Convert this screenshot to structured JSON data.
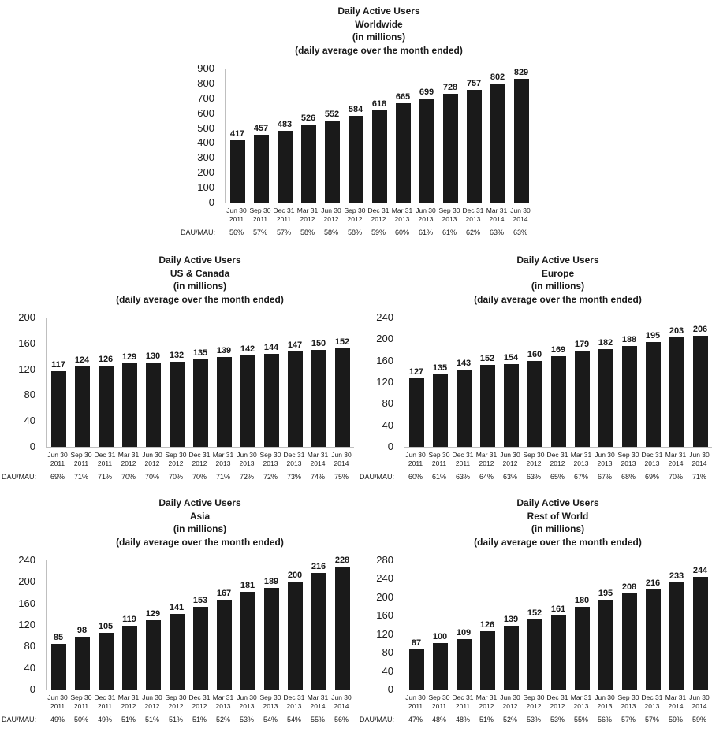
{
  "colors": {
    "bar": "#1a1a1a",
    "axis": "#bfbfbf",
    "text": "#1a1a1a"
  },
  "dau_mau_row_label": "DAU/MAU:",
  "chart_data": [
    {
      "type": "bar",
      "title": "Daily Active Users Worldwide (in millions)",
      "title_lines": [
        "Daily Active Users",
        "Worldwide",
        "(in millions)",
        "(daily average over the month ended)"
      ],
      "categories": [
        "Jun 30 2011",
        "Sep 30 2011",
        "Dec 31 2011",
        "Mar 31 2012",
        "Jun 30 2012",
        "Sep 30 2012",
        "Dec 31 2012",
        "Mar 31 2013",
        "Jun 30 2013",
        "Sep 30 2013",
        "Dec 31 2013",
        "Mar 31 2014",
        "Jun 30 2014"
      ],
      "values": [
        417,
        457,
        483,
        526,
        552,
        584,
        618,
        665,
        699,
        728,
        757,
        802,
        829
      ],
      "dau_mau_label": "DAU/MAU:",
      "dau_mau": [
        "56%",
        "57%",
        "57%",
        "58%",
        "58%",
        "58%",
        "59%",
        "60%",
        "61%",
        "61%",
        "62%",
        "63%",
        "63%"
      ],
      "ylim": [
        0,
        900
      ],
      "ytick_step": 100,
      "grid": false,
      "legend": false
    },
    {
      "type": "bar",
      "title": "Daily Active Users US & Canada (in millions)",
      "title_lines": [
        "Daily Active Users",
        "US & Canada",
        "(in millions)",
        "(daily average over the month ended)"
      ],
      "categories": [
        "Jun 30 2011",
        "Sep 30 2011",
        "Dec 31 2011",
        "Mar 31 2012",
        "Jun 30 2012",
        "Sep 30 2012",
        "Dec 31 2012",
        "Mar 31 2013",
        "Jun 30 2013",
        "Sep 30 2013",
        "Dec 31 2013",
        "Mar 31 2014",
        "Jun 30 2014"
      ],
      "values": [
        117,
        124,
        126,
        129,
        130,
        132,
        135,
        139,
        142,
        144,
        147,
        150,
        152
      ],
      "dau_mau_label": "DAU/MAU:",
      "dau_mau": [
        "69%",
        "71%",
        "71%",
        "70%",
        "70%",
        "70%",
        "70%",
        "71%",
        "72%",
        "72%",
        "73%",
        "74%",
        "75%"
      ],
      "ylim": [
        0,
        200
      ],
      "ytick_step": 40,
      "grid": false,
      "legend": false
    },
    {
      "type": "bar",
      "title": "Daily Active Users Europe (in millions)",
      "title_lines": [
        "Daily Active Users",
        "Europe",
        "(in millions)",
        "(daily average over the month ended)"
      ],
      "categories": [
        "Jun 30 2011",
        "Sep 30 2011",
        "Dec 31 2011",
        "Mar 31 2012",
        "Jun 30 2012",
        "Sep 30 2012",
        "Dec 31 2012",
        "Mar 31 2013",
        "Jun 30 2013",
        "Sep 30 2013",
        "Dec 31 2013",
        "Mar 31 2014",
        "Jun 30 2014"
      ],
      "values": [
        127,
        135,
        143,
        152,
        154,
        160,
        169,
        179,
        182,
        188,
        195,
        203,
        206
      ],
      "dau_mau_label": "DAU/MAU:",
      "dau_mau": [
        "60%",
        "61%",
        "63%",
        "64%",
        "63%",
        "63%",
        "65%",
        "67%",
        "67%",
        "68%",
        "69%",
        "70%",
        "71%"
      ],
      "ylim": [
        0,
        240
      ],
      "ytick_step": 40,
      "grid": false,
      "legend": false
    },
    {
      "type": "bar",
      "title": "Daily Active Users Asia (in millions)",
      "title_lines": [
        "Daily Active Users",
        "Asia",
        "(in millions)",
        "(daily average over the month ended)"
      ],
      "categories": [
        "Jun 30 2011",
        "Sep 30 2011",
        "Dec 31 2011",
        "Mar 31 2012",
        "Jun 30 2012",
        "Sep 30 2012",
        "Dec 31 2012",
        "Mar 31 2013",
        "Jun 30 2013",
        "Sep 30 2013",
        "Dec 31 2013",
        "Mar 31 2014",
        "Jun 30 2014"
      ],
      "values": [
        85,
        98,
        105,
        119,
        129,
        141,
        153,
        167,
        181,
        189,
        200,
        216,
        228
      ],
      "dau_mau_label": "DAU/MAU:",
      "dau_mau": [
        "49%",
        "50%",
        "49%",
        "51%",
        "51%",
        "51%",
        "51%",
        "52%",
        "53%",
        "54%",
        "54%",
        "55%",
        "56%"
      ],
      "ylim": [
        0,
        240
      ],
      "ytick_step": 40,
      "grid": false,
      "legend": false
    },
    {
      "type": "bar",
      "title": "Daily Active Users Rest of World (in millions)",
      "title_lines": [
        "Daily Active Users",
        "Rest of World",
        "(in millions)",
        "(daily average over the month ended)"
      ],
      "categories": [
        "Jun 30 2011",
        "Sep 30 2011",
        "Dec 31 2011",
        "Mar 31 2012",
        "Jun 30 2012",
        "Sep 30 2012",
        "Dec 31 2012",
        "Mar 31 2013",
        "Jun 30 2013",
        "Sep 30 2013",
        "Dec 31 2013",
        "Mar 31 2014",
        "Jun 30 2014"
      ],
      "values": [
        87,
        100,
        109,
        126,
        139,
        152,
        161,
        180,
        195,
        208,
        216,
        233,
        244
      ],
      "dau_mau_label": "DAU/MAU:",
      "dau_mau": [
        "47%",
        "48%",
        "48%",
        "51%",
        "52%",
        "53%",
        "53%",
        "55%",
        "56%",
        "57%",
        "57%",
        "59%",
        "59%"
      ],
      "ylim": [
        0,
        280
      ],
      "ytick_step": 40,
      "grid": false,
      "legend": false
    }
  ]
}
